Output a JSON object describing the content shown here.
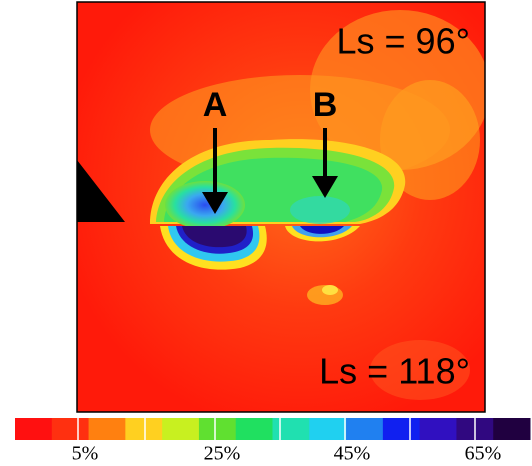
{
  "panel": {
    "top_label": "Ls = 96°",
    "bottom_label": "Ls = 118°",
    "markers": [
      "A",
      "B"
    ]
  },
  "colorbar": {
    "ticks": [
      "5%",
      "25%",
      "45%",
      "65%"
    ]
  }
}
